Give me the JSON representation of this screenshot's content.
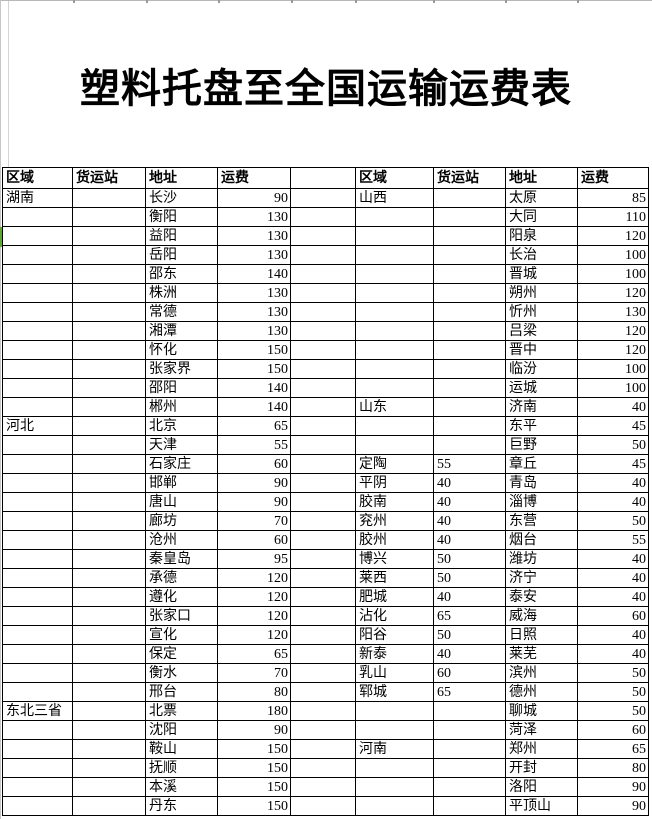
{
  "title": "塑料托盘至全国运输运费表",
  "columns": [
    "区域",
    "货运站",
    "地址",
    "运费"
  ],
  "colors": {
    "selection_marker_green": "#5ea632",
    "grid_line": "#000000",
    "hairline_gray": "#c6c6c6"
  },
  "left_rows": [
    [
      "湖南",
      "",
      "长沙",
      "90"
    ],
    [
      "",
      "",
      "衡阳",
      "130"
    ],
    [
      "",
      "",
      "益阳",
      "130"
    ],
    [
      "",
      "",
      "岳阳",
      "130"
    ],
    [
      "",
      "",
      "邵东",
      "140"
    ],
    [
      "",
      "",
      "株洲",
      "130"
    ],
    [
      "",
      "",
      "常德",
      "130"
    ],
    [
      "",
      "",
      "湘潭",
      "130"
    ],
    [
      "",
      "",
      "怀化",
      "150"
    ],
    [
      "",
      "",
      "张家界",
      "150"
    ],
    [
      "",
      "",
      "邵阳",
      "140"
    ],
    [
      "",
      "",
      "郴州",
      "140"
    ],
    [
      "河北",
      "",
      "北京",
      "65"
    ],
    [
      "",
      "",
      "天津",
      "55"
    ],
    [
      "",
      "",
      "石家庄",
      "60"
    ],
    [
      "",
      "",
      "邯郸",
      "90"
    ],
    [
      "",
      "",
      "唐山",
      "90"
    ],
    [
      "",
      "",
      "廊坊",
      "70"
    ],
    [
      "",
      "",
      "沧州",
      "60"
    ],
    [
      "",
      "",
      "秦皇岛",
      "95"
    ],
    [
      "",
      "",
      "承德",
      "120"
    ],
    [
      "",
      "",
      "遵化",
      "120"
    ],
    [
      "",
      "",
      "张家口",
      "120"
    ],
    [
      "",
      "",
      "宣化",
      "120"
    ],
    [
      "",
      "",
      "保定",
      "65"
    ],
    [
      "",
      "",
      "衡水",
      "70"
    ],
    [
      "",
      "",
      "邢台",
      "80"
    ],
    [
      "东北三省",
      "",
      "北票",
      "180"
    ],
    [
      "",
      "",
      "沈阳",
      "90"
    ],
    [
      "",
      "",
      "鞍山",
      "150"
    ],
    [
      "",
      "",
      "抚顺",
      "150"
    ],
    [
      "",
      "",
      "本溪",
      "150"
    ],
    [
      "",
      "",
      "丹东",
      "150"
    ]
  ],
  "right_rows": [
    [
      "山西",
      "",
      "太原",
      "85"
    ],
    [
      "",
      "",
      "大同",
      "110"
    ],
    [
      "",
      "",
      "阳泉",
      "120"
    ],
    [
      "",
      "",
      "长治",
      "100"
    ],
    [
      "",
      "",
      "晋城",
      "100"
    ],
    [
      "",
      "",
      "朔州",
      "120"
    ],
    [
      "",
      "",
      "忻州",
      "130"
    ],
    [
      "",
      "",
      "吕梁",
      "120"
    ],
    [
      "",
      "",
      "晋中",
      "120"
    ],
    [
      "",
      "",
      "临汾",
      "100"
    ],
    [
      "",
      "",
      "运城",
      "100"
    ],
    [
      "山东",
      "",
      "济南",
      "40"
    ],
    [
      "",
      "",
      "东平",
      "45"
    ],
    [
      "",
      "",
      "巨野",
      "50"
    ],
    [
      "定陶",
      "55",
      "章丘",
      "45"
    ],
    [
      "平阴",
      "40",
      "青岛",
      "40"
    ],
    [
      "胶南",
      "40",
      "淄博",
      "40"
    ],
    [
      "兖州",
      "40",
      "东营",
      "50"
    ],
    [
      "胶州",
      "40",
      "烟台",
      "55"
    ],
    [
      "博兴",
      "50",
      "潍坊",
      "40"
    ],
    [
      "莱西",
      "50",
      "济宁",
      "40"
    ],
    [
      "肥城",
      "40",
      "泰安",
      "40"
    ],
    [
      "沾化",
      "65",
      "威海",
      "60"
    ],
    [
      "阳谷",
      "50",
      "日照",
      "40"
    ],
    [
      "新泰",
      "40",
      "莱芜",
      "40"
    ],
    [
      "乳山",
      "60",
      "滨州",
      "50"
    ],
    [
      "郓城",
      "65",
      "德州",
      "50"
    ],
    [
      "",
      "",
      "聊城",
      "50"
    ],
    [
      "",
      "",
      "菏泽",
      "60"
    ],
    [
      "河南",
      "",
      "郑州",
      "65"
    ],
    [
      "",
      "",
      "开封",
      "80"
    ],
    [
      "",
      "",
      "洛阳",
      "90"
    ],
    [
      "",
      "",
      "平顶山",
      "90"
    ]
  ]
}
